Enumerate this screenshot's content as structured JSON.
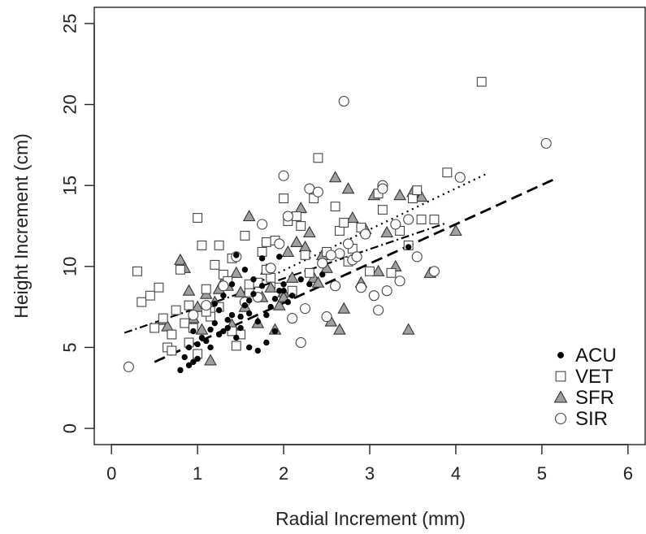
{
  "chart_data": {
    "type": "scatter",
    "title": "",
    "xlabel": "Radial Increment (mm)",
    "ylabel": "Height Increment (cm)",
    "xlim": [
      -0.2,
      6.2
    ],
    "ylim": [
      -1.0,
      26.0
    ],
    "xticks": [
      "0",
      "1",
      "2",
      "3",
      "4",
      "5",
      "6"
    ],
    "yticks": [
      "0",
      "5",
      "10",
      "15",
      "20",
      "25"
    ],
    "legend_position": "bottom-right",
    "series": [
      {
        "name": "ACU",
        "marker": "filled-circle",
        "fill": "#000000",
        "stroke": "#000000",
        "points": [
          [
            0.8,
            3.6
          ],
          [
            0.9,
            3.9
          ],
          [
            0.95,
            4.1
          ],
          [
            1.0,
            4.3
          ],
          [
            0.85,
            4.4
          ],
          [
            0.9,
            5.0
          ],
          [
            1.0,
            5.2
          ],
          [
            1.05,
            5.6
          ],
          [
            1.1,
            5.4
          ],
          [
            0.95,
            6.0
          ],
          [
            1.15,
            6.1
          ],
          [
            1.2,
            6.5
          ],
          [
            1.3,
            6.0
          ],
          [
            1.35,
            6.7
          ],
          [
            1.4,
            7.0
          ],
          [
            1.25,
            7.3
          ],
          [
            1.45,
            5.6
          ],
          [
            1.5,
            6.2
          ],
          [
            1.55,
            7.6
          ],
          [
            1.6,
            7.9
          ],
          [
            1.65,
            8.3
          ],
          [
            1.7,
            6.6
          ],
          [
            1.75,
            8.8
          ],
          [
            1.8,
            7.0
          ],
          [
            1.85,
            7.5
          ],
          [
            1.9,
            8.0
          ],
          [
            1.95,
            8.5
          ],
          [
            2.0,
            8.9
          ],
          [
            2.05,
            7.8
          ],
          [
            2.1,
            8.2
          ],
          [
            1.15,
            5.0
          ],
          [
            1.25,
            5.8
          ],
          [
            1.35,
            6.2
          ],
          [
            1.5,
            6.9
          ],
          [
            1.6,
            7.1
          ],
          [
            1.7,
            4.8
          ],
          [
            1.6,
            5.0
          ],
          [
            1.8,
            5.3
          ],
          [
            1.9,
            6.0
          ],
          [
            2.0,
            8.5
          ],
          [
            1.45,
            10.7
          ],
          [
            1.75,
            10.5
          ],
          [
            1.95,
            10.6
          ],
          [
            2.2,
            9.2
          ],
          [
            2.3,
            8.9
          ],
          [
            2.45,
            9.5
          ],
          [
            3.45,
            11.2
          ],
          [
            1.4,
            8.9
          ],
          [
            1.2,
            7.7
          ],
          [
            1.3,
            8.2
          ],
          [
            1.55,
            9.8
          ],
          [
            1.65,
            9.2
          ]
        ]
      },
      {
        "name": "VET",
        "marker": "open-square",
        "fill": "#ffffff",
        "stroke": "#444444",
        "points": [
          [
            0.3,
            9.7
          ],
          [
            0.35,
            7.8
          ],
          [
            0.45,
            8.2
          ],
          [
            0.5,
            6.2
          ],
          [
            0.55,
            8.7
          ],
          [
            0.6,
            6.8
          ],
          [
            0.65,
            5.0
          ],
          [
            0.7,
            4.8
          ],
          [
            0.75,
            7.3
          ],
          [
            0.8,
            9.8
          ],
          [
            0.85,
            6.5
          ],
          [
            0.9,
            7.6
          ],
          [
            0.95,
            6.2
          ],
          [
            1.0,
            13.0
          ],
          [
            1.05,
            11.3
          ],
          [
            1.1,
            8.6
          ],
          [
            1.15,
            6.9
          ],
          [
            1.2,
            10.1
          ],
          [
            1.25,
            11.3
          ],
          [
            1.3,
            9.5
          ],
          [
            1.35,
            9.1
          ],
          [
            1.4,
            10.5
          ],
          [
            1.45,
            5.1
          ],
          [
            1.5,
            5.8
          ],
          [
            1.55,
            11.9
          ],
          [
            1.6,
            8.4
          ],
          [
            1.7,
            9.0
          ],
          [
            1.75,
            10.9
          ],
          [
            1.8,
            11.5
          ],
          [
            1.85,
            9.3
          ],
          [
            1.9,
            11.6
          ],
          [
            1.95,
            8.7
          ],
          [
            2.0,
            14.2
          ],
          [
            2.05,
            12.8
          ],
          [
            2.1,
            8.5
          ],
          [
            2.15,
            13.1
          ],
          [
            2.2,
            12.5
          ],
          [
            2.25,
            10.7
          ],
          [
            2.3,
            9.6
          ],
          [
            2.35,
            14.2
          ],
          [
            2.4,
            16.7
          ],
          [
            2.5,
            10.9
          ],
          [
            2.6,
            13.7
          ],
          [
            2.65,
            12.2
          ],
          [
            2.7,
            12.7
          ],
          [
            2.75,
            10.3
          ],
          [
            2.8,
            11.1
          ],
          [
            2.9,
            12.4
          ],
          [
            3.0,
            9.7
          ],
          [
            3.1,
            14.5
          ],
          [
            3.15,
            13.5
          ],
          [
            3.25,
            9.6
          ],
          [
            3.35,
            12.2
          ],
          [
            3.45,
            11.3
          ],
          [
            3.5,
            14.2
          ],
          [
            3.55,
            14.7
          ],
          [
            3.6,
            12.9
          ],
          [
            3.75,
            12.9
          ],
          [
            3.9,
            15.8
          ],
          [
            4.3,
            21.4
          ],
          [
            0.7,
            5.8
          ],
          [
            0.9,
            5.3
          ],
          [
            1.0,
            4.6
          ],
          [
            1.1,
            7.2
          ],
          [
            1.25,
            7.5
          ],
          [
            1.4,
            6.0
          ],
          [
            1.6,
            8.9
          ],
          [
            1.8,
            9.8
          ]
        ]
      },
      {
        "name": "SFR",
        "marker": "filled-triangle",
        "fill": "#a0a0a0",
        "stroke": "#333333",
        "points": [
          [
            0.6,
            6.7
          ],
          [
            0.65,
            6.3
          ],
          [
            0.8,
            10.4
          ],
          [
            0.85,
            9.9
          ],
          [
            0.9,
            8.5
          ],
          [
            0.95,
            6.8
          ],
          [
            1.0,
            7.5
          ],
          [
            1.05,
            6.1
          ],
          [
            1.1,
            8.3
          ],
          [
            1.15,
            4.2
          ],
          [
            1.2,
            7.8
          ],
          [
            1.3,
            9.1
          ],
          [
            1.35,
            8.8
          ],
          [
            1.4,
            6.4
          ],
          [
            1.5,
            8.4
          ],
          [
            1.55,
            7.5
          ],
          [
            1.6,
            13.1
          ],
          [
            1.65,
            9.0
          ],
          [
            1.7,
            6.5
          ],
          [
            1.75,
            8.1
          ],
          [
            1.8,
            9.8
          ],
          [
            1.9,
            6.1
          ],
          [
            1.95,
            7.6
          ],
          [
            2.0,
            8.4
          ],
          [
            2.05,
            10.9
          ],
          [
            2.1,
            9.3
          ],
          [
            2.15,
            11.5
          ],
          [
            2.2,
            13.6
          ],
          [
            2.25,
            11.2
          ],
          [
            2.3,
            12.1
          ],
          [
            2.35,
            9.3
          ],
          [
            2.45,
            10.7
          ],
          [
            2.5,
            9.9
          ],
          [
            2.55,
            6.6
          ],
          [
            2.6,
            15.5
          ],
          [
            2.7,
            7.4
          ],
          [
            2.75,
            14.8
          ],
          [
            2.8,
            13.0
          ],
          [
            2.9,
            9.0
          ],
          [
            2.95,
            12.3
          ],
          [
            3.05,
            14.4
          ],
          [
            3.1,
            9.7
          ],
          [
            3.2,
            12.1
          ],
          [
            3.35,
            14.4
          ],
          [
            3.45,
            6.1
          ],
          [
            3.5,
            14.6
          ],
          [
            3.6,
            14.3
          ],
          [
            3.7,
            9.6
          ],
          [
            4.0,
            12.2
          ],
          [
            2.0,
            8.1
          ],
          [
            1.25,
            8.6
          ],
          [
            1.45,
            9.6
          ],
          [
            1.85,
            8.7
          ],
          [
            2.4,
            9.0
          ],
          [
            2.65,
            6.1
          ],
          [
            3.3,
            10.0
          ]
        ]
      },
      {
        "name": "SIR",
        "marker": "open-circle",
        "fill": "#ffffff",
        "stroke": "#444444",
        "points": [
          [
            0.2,
            3.8
          ],
          [
            0.95,
            7.0
          ],
          [
            1.1,
            7.6
          ],
          [
            1.3,
            8.8
          ],
          [
            1.45,
            10.6
          ],
          [
            1.55,
            7.8
          ],
          [
            1.7,
            8.1
          ],
          [
            1.75,
            12.6
          ],
          [
            1.85,
            9.9
          ],
          [
            2.0,
            15.6
          ],
          [
            2.05,
            13.1
          ],
          [
            2.1,
            6.8
          ],
          [
            2.2,
            5.3
          ],
          [
            2.25,
            7.4
          ],
          [
            2.3,
            14.8
          ],
          [
            2.4,
            14.6
          ],
          [
            2.45,
            10.2
          ],
          [
            2.5,
            6.9
          ],
          [
            2.6,
            8.8
          ],
          [
            2.65,
            10.8
          ],
          [
            2.7,
            20.2
          ],
          [
            2.75,
            11.4
          ],
          [
            2.8,
            10.4
          ],
          [
            2.9,
            8.7
          ],
          [
            2.95,
            12.0
          ],
          [
            3.05,
            8.2
          ],
          [
            3.1,
            7.3
          ],
          [
            3.15,
            15.0
          ],
          [
            3.2,
            8.5
          ],
          [
            3.3,
            12.6
          ],
          [
            3.35,
            9.1
          ],
          [
            3.45,
            12.9
          ],
          [
            3.55,
            10.6
          ],
          [
            3.75,
            9.7
          ],
          [
            4.05,
            15.5
          ],
          [
            5.05,
            17.6
          ],
          [
            2.55,
            10.7
          ],
          [
            3.15,
            14.8
          ],
          [
            2.85,
            10.6
          ],
          [
            1.95,
            11.4
          ]
        ]
      }
    ],
    "fit_lines": [
      {
        "style": "long-dash",
        "x": [
          0.5,
          5.15
        ],
        "y": [
          4.1,
          15.4
        ]
      },
      {
        "style": "dash-dot",
        "x": [
          0.15,
          3.9
        ],
        "y": [
          5.9,
          12.7
        ]
      },
      {
        "style": "dotted",
        "x": [
          1.7,
          4.35
        ],
        "y": [
          9.0,
          15.7
        ]
      }
    ]
  }
}
